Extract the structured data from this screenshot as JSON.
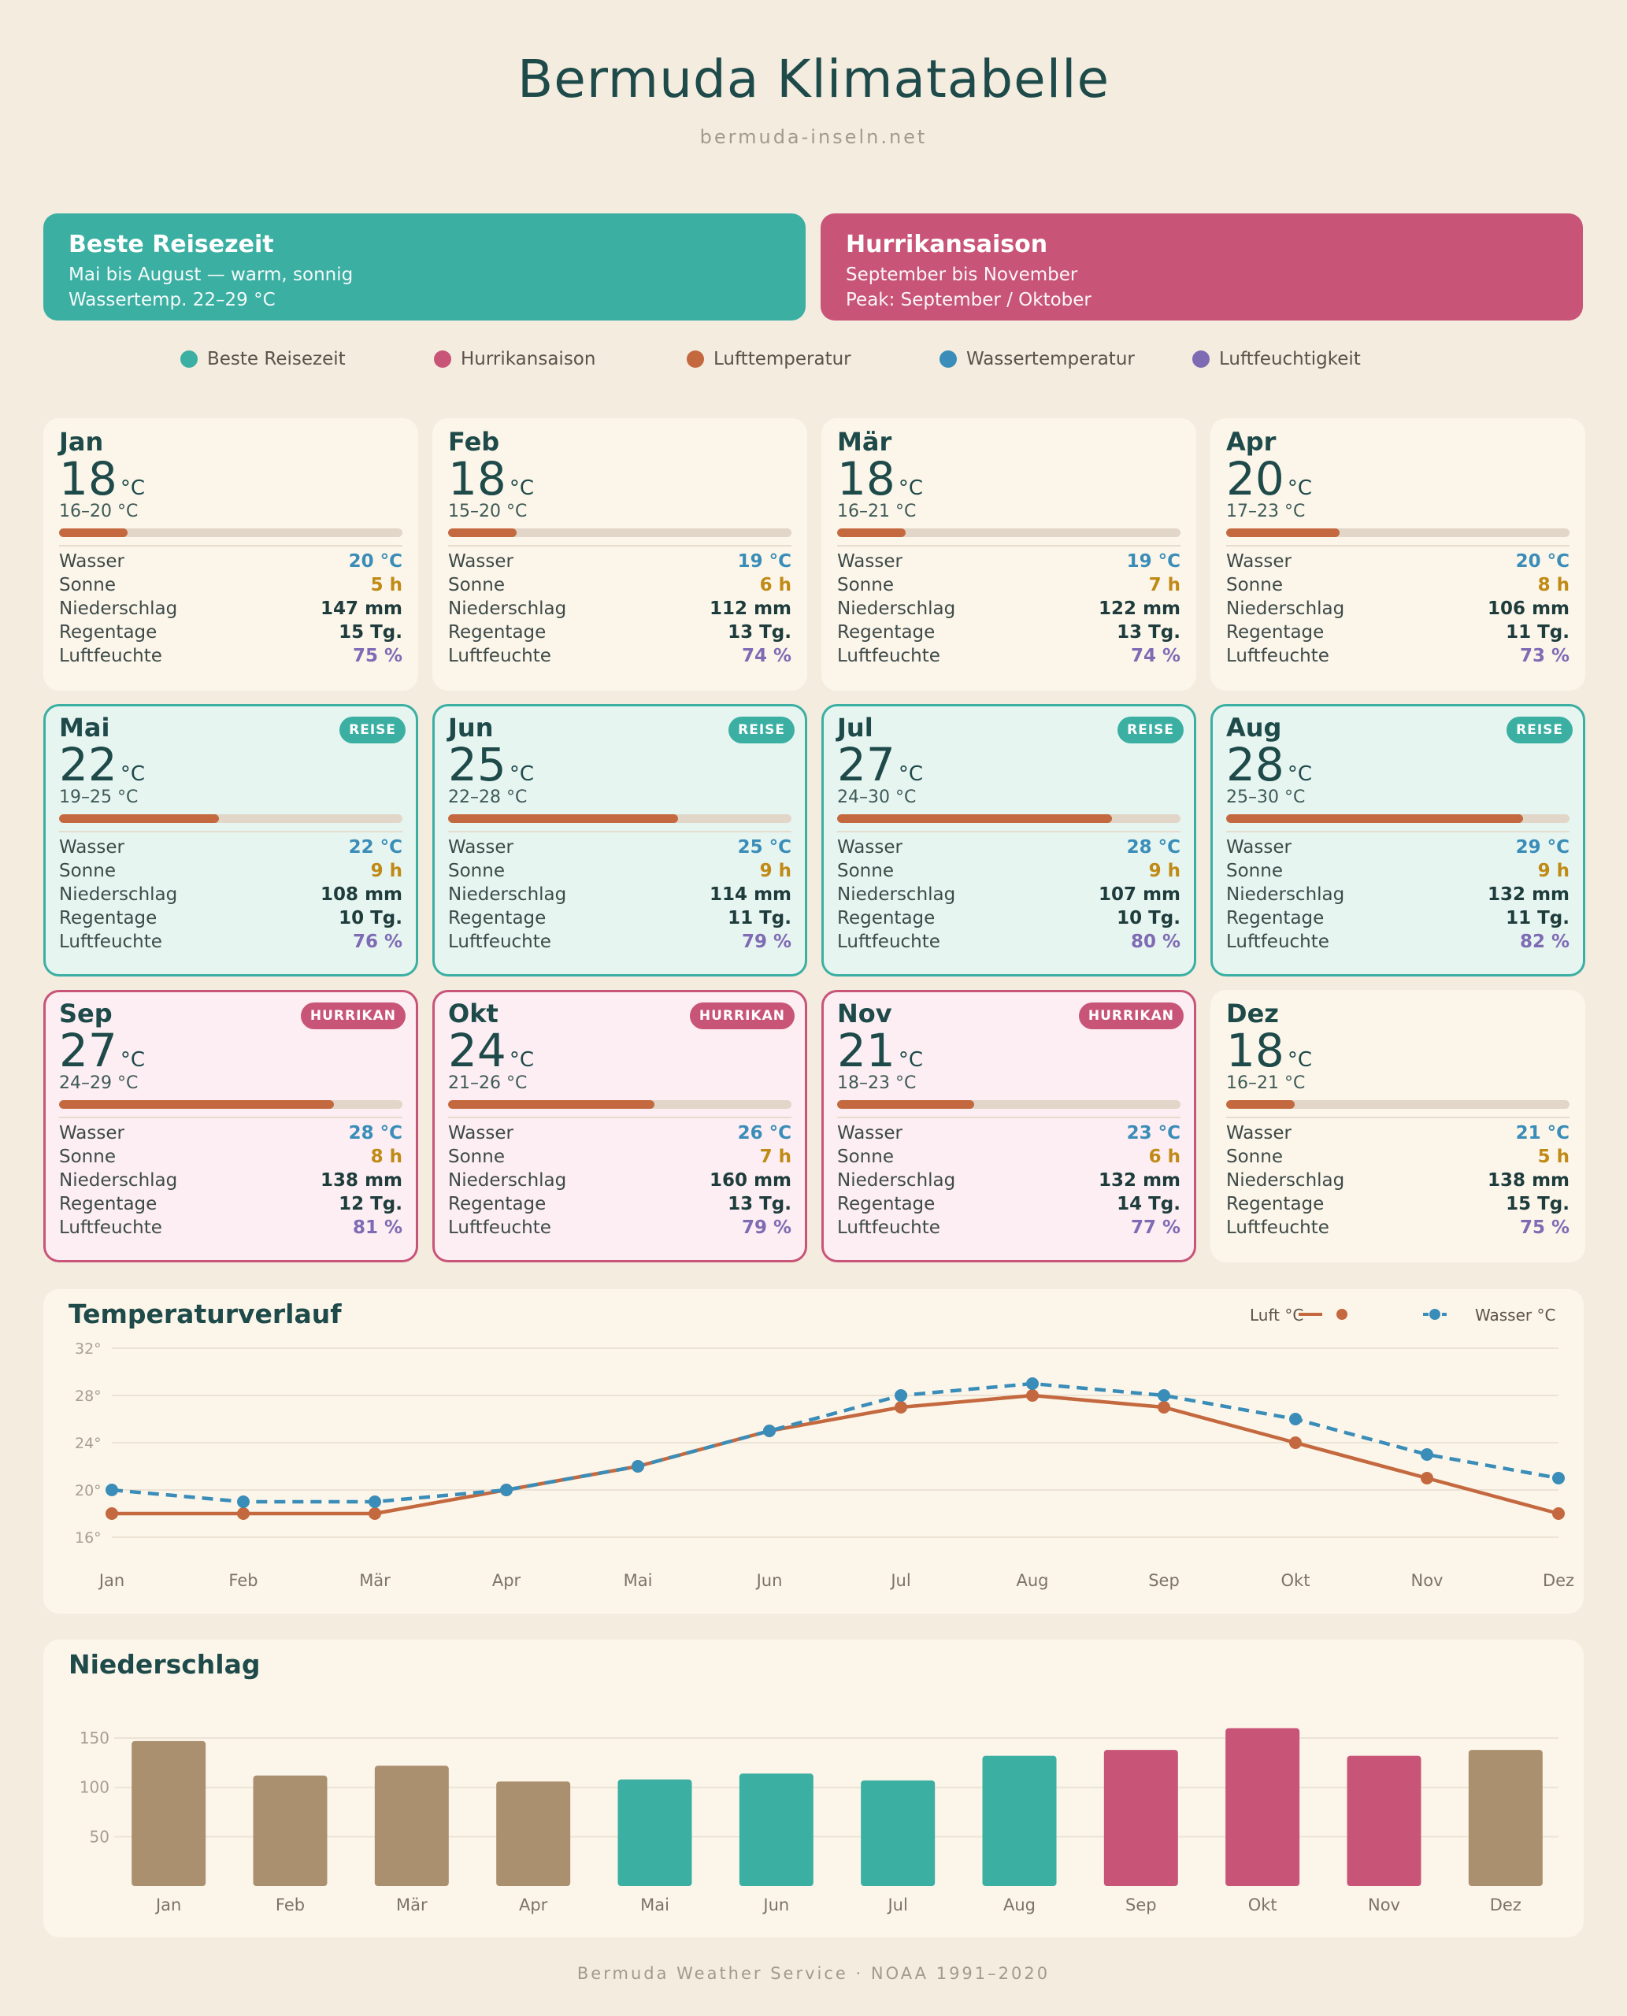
{
  "header": {
    "title": "Bermuda Klimatabelle",
    "subtitle": "bermuda-inseln.net"
  },
  "banners": {
    "best": {
      "title": "Beste Reisezeit",
      "line1": "Mai bis August — warm, sonnig",
      "line2": "Wassertemp. 22–29 °C",
      "color": "#3AAFA2"
    },
    "hurricane": {
      "title": "Hurrikansaison",
      "line1": "September bis November",
      "line2": "Peak: September / Oktober",
      "color": "#C85478"
    }
  },
  "legend": [
    {
      "label": "Beste Reisezeit",
      "color": "#3AAFA2"
    },
    {
      "label": "Hurrikansaison",
      "color": "#C85478"
    },
    {
      "label": "Lufttemperatur",
      "color": "#C4693F"
    },
    {
      "label": "Wassertemperatur",
      "color": "#3A8DB8"
    },
    {
      "label": "Luftfeuchtigkeit",
      "color": "#7E6BB4"
    }
  ],
  "labels": {
    "unit": "°C",
    "wasser": "Wasser",
    "sonne": "Sonne",
    "niederschlag": "Niederschlag",
    "regentage": "Regentage",
    "luftfeuchte": "Luftfeuchte"
  },
  "months": [
    {
      "name": "Jan",
      "temp": "18",
      "range": "16–20 °C",
      "temp_fraction": 0.2,
      "wasser": "20 °C",
      "sonne": "5 h",
      "niederschlag": "147 mm",
      "regentage": "15 Tg.",
      "luftfeuchte": "75 %",
      "type": "normal",
      "badge": ""
    },
    {
      "name": "Feb",
      "temp": "18",
      "range": "15–20 °C",
      "temp_fraction": 0.2,
      "wasser": "19 °C",
      "sonne": "6 h",
      "niederschlag": "112 mm",
      "regentage": "13 Tg.",
      "luftfeuchte": "74 %",
      "type": "normal",
      "badge": ""
    },
    {
      "name": "Mär",
      "temp": "18",
      "range": "16–21 °C",
      "temp_fraction": 0.2,
      "wasser": "19 °C",
      "sonne": "7 h",
      "niederschlag": "122 mm",
      "regentage": "13 Tg.",
      "luftfeuchte": "74 %",
      "type": "normal",
      "badge": ""
    },
    {
      "name": "Apr",
      "temp": "20",
      "range": "17–23 °C",
      "temp_fraction": 0.33,
      "wasser": "20 °C",
      "sonne": "8 h",
      "niederschlag": "106 mm",
      "regentage": "11 Tg.",
      "luftfeuchte": "73 %",
      "type": "normal",
      "badge": ""
    },
    {
      "name": "Mai",
      "temp": "22",
      "range": "19–25 °C",
      "temp_fraction": 0.465,
      "wasser": "22 °C",
      "sonne": "9 h",
      "niederschlag": "108 mm",
      "regentage": "10 Tg.",
      "luftfeuchte": "76 %",
      "type": "reise",
      "badge": "REISE"
    },
    {
      "name": "Jun",
      "temp": "25",
      "range": "22–28 °C",
      "temp_fraction": 0.67,
      "wasser": "25 °C",
      "sonne": "9 h",
      "niederschlag": "114 mm",
      "regentage": "11 Tg.",
      "luftfeuchte": "79 %",
      "type": "reise",
      "badge": "REISE"
    },
    {
      "name": "Jul",
      "temp": "27",
      "range": "24–30 °C",
      "temp_fraction": 0.8,
      "wasser": "28 °C",
      "sonne": "9 h",
      "niederschlag": "107 mm",
      "regentage": "10 Tg.",
      "luftfeuchte": "80 %",
      "type": "reise",
      "badge": "REISE"
    },
    {
      "name": "Aug",
      "temp": "28",
      "range": "25–30 °C",
      "temp_fraction": 0.865,
      "wasser": "29 °C",
      "sonne": "9 h",
      "niederschlag": "132 mm",
      "regentage": "11 Tg.",
      "luftfeuchte": "82 %",
      "type": "reise",
      "badge": "REISE"
    },
    {
      "name": "Sep",
      "temp": "27",
      "range": "24–29 °C",
      "temp_fraction": 0.8,
      "wasser": "28 °C",
      "sonne": "8 h",
      "niederschlag": "138 mm",
      "regentage": "12 Tg.",
      "luftfeuchte": "81 %",
      "type": "hurrikan",
      "badge": "HURRIKAN"
    },
    {
      "name": "Okt",
      "temp": "24",
      "range": "21–26 °C",
      "temp_fraction": 0.6,
      "wasser": "26 °C",
      "sonne": "7 h",
      "niederschlag": "160 mm",
      "regentage": "13 Tg.",
      "luftfeuchte": "79 %",
      "type": "hurrikan",
      "badge": "HURRIKAN"
    },
    {
      "name": "Nov",
      "temp": "21",
      "range": "18–23 °C",
      "temp_fraction": 0.4,
      "wasser": "23 °C",
      "sonne": "6 h",
      "niederschlag": "132 mm",
      "regentage": "14 Tg.",
      "luftfeuchte": "77 %",
      "type": "hurrikan",
      "badge": "HURRIKAN"
    },
    {
      "name": "Dez",
      "temp": "18",
      "range": "16–21 °C",
      "temp_fraction": 0.2,
      "wasser": "21 °C",
      "sonne": "5 h",
      "niederschlag": "138 mm",
      "regentage": "15 Tg.",
      "luftfeuchte": "75 %",
      "type": "normal",
      "badge": ""
    }
  ],
  "chart_data": [
    {
      "type": "line",
      "title": "Temperaturverlauf",
      "x": [
        "Jan",
        "Feb",
        "Mär",
        "Apr",
        "Mai",
        "Jun",
        "Jul",
        "Aug",
        "Sep",
        "Okt",
        "Nov",
        "Dez"
      ],
      "series": [
        {
          "name": "Luft °C",
          "values": [
            18,
            18,
            18,
            20,
            22,
            25,
            27,
            28,
            27,
            24,
            21,
            18
          ],
          "color": "#C4693F",
          "style": "solid"
        },
        {
          "name": "Wasser °C",
          "values": [
            20,
            19,
            19,
            20,
            22,
            25,
            28,
            29,
            28,
            26,
            23,
            21
          ],
          "color": "#3A8DB8",
          "style": "dashed"
        }
      ],
      "yticks": [
        "16°",
        "20°",
        "24°",
        "28°",
        "32°"
      ],
      "ylim": [
        16,
        32
      ],
      "grid": true,
      "legend": "top-right"
    },
    {
      "type": "bar",
      "title": "Niederschlag",
      "categories": [
        "Jan",
        "Feb",
        "Mär",
        "Apr",
        "Mai",
        "Jun",
        "Jul",
        "Aug",
        "Sep",
        "Okt",
        "Nov",
        "Dez"
      ],
      "values": [
        147,
        112,
        122,
        106,
        108,
        114,
        107,
        132,
        138,
        160,
        132,
        138
      ],
      "bar_colors": [
        "#AB9070",
        "#AB9070",
        "#AB9070",
        "#AB9070",
        "#3AAFA2",
        "#3AAFA2",
        "#3AAFA2",
        "#3AAFA2",
        "#C85478",
        "#C85478",
        "#C85478",
        "#AB9070"
      ],
      "yticks": [
        "50",
        "100",
        "150"
      ],
      "ylim": [
        0,
        170
      ],
      "grid": true
    }
  ],
  "footer": "Bermuda Weather Service · NOAA 1991–2020"
}
